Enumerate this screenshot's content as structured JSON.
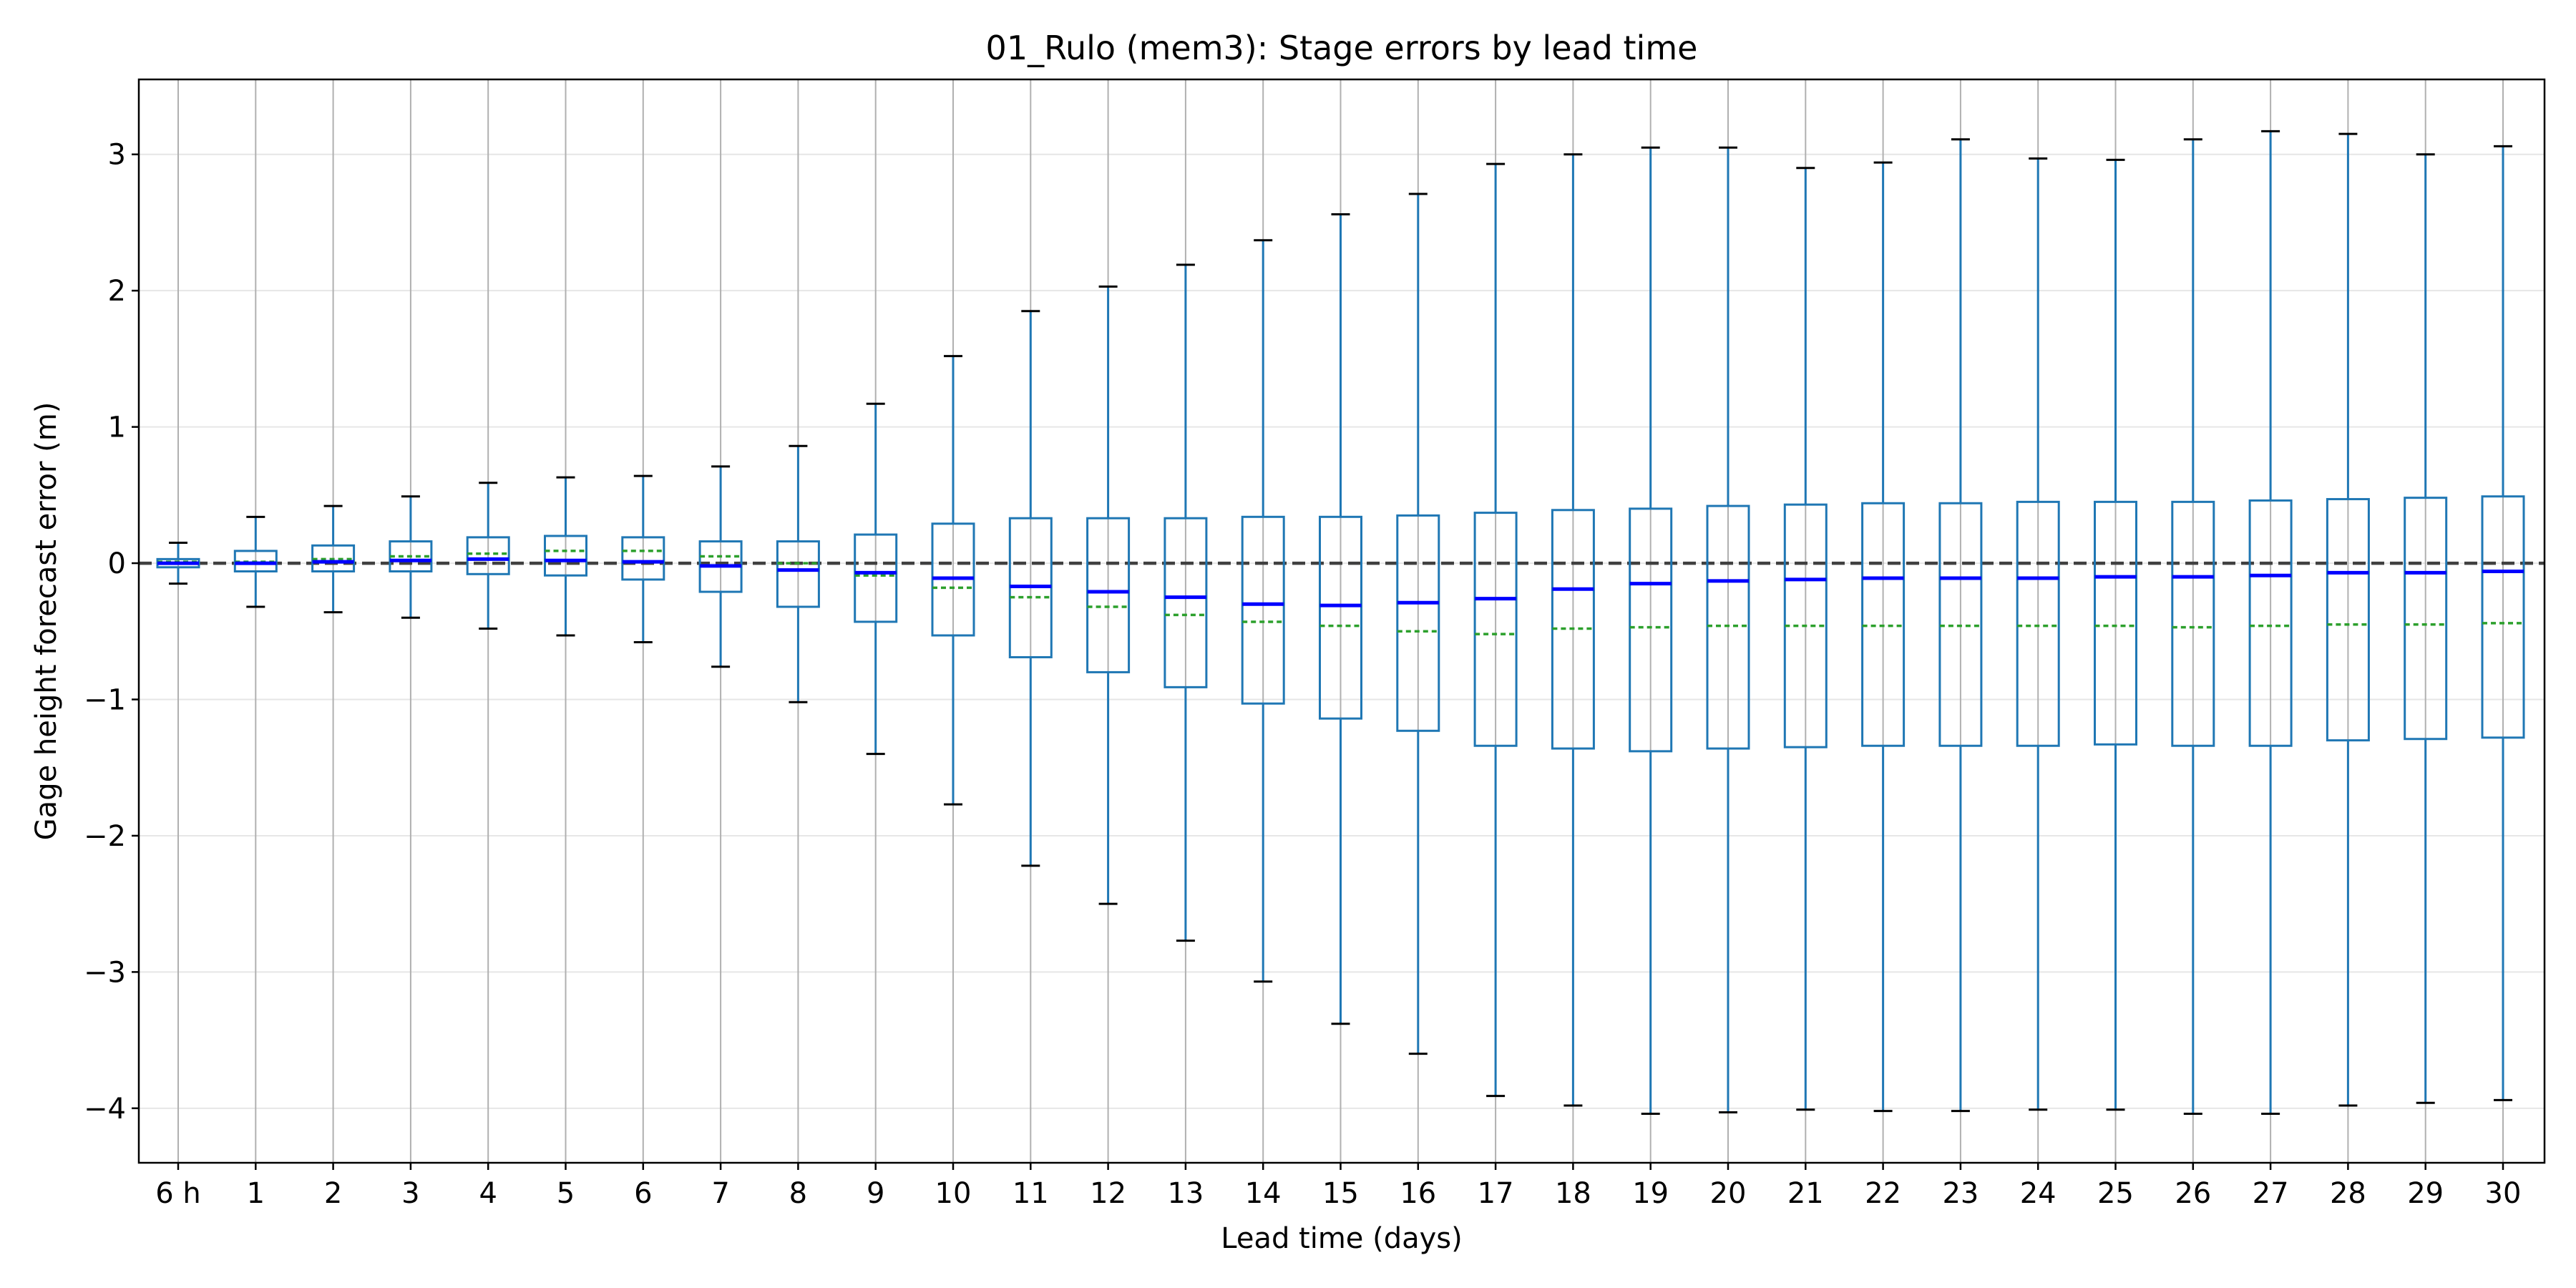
{
  "chart_data": {
    "type": "box",
    "title": "01_Rulo (mem3): Stage errors by lead time",
    "xlabel": "Lead time (days)",
    "ylabel": "Gage height forecast error (m)",
    "ylim": [
      -4.4,
      3.55
    ],
    "yticks": [
      3,
      2,
      1,
      0,
      -1,
      -2,
      -3,
      -4
    ],
    "ytick_labels": [
      "3",
      "2",
      "1",
      "0",
      "−1",
      "−2",
      "−3",
      "−4"
    ],
    "categories": [
      "6 h",
      "1",
      "2",
      "3",
      "4",
      "5",
      "6",
      "7",
      "8",
      "9",
      "10",
      "11",
      "12",
      "13",
      "14",
      "15",
      "16",
      "17",
      "18",
      "19",
      "20",
      "21",
      "22",
      "23",
      "24",
      "25",
      "26",
      "27",
      "28",
      "29",
      "30"
    ],
    "whisker_low": [
      -0.15,
      -0.32,
      -0.36,
      -0.4,
      -0.48,
      -0.53,
      -0.58,
      -0.76,
      -1.02,
      -1.4,
      -1.77,
      -2.22,
      -2.5,
      -2.77,
      -3.07,
      -3.38,
      -3.6,
      -3.91,
      -3.98,
      -4.04,
      -4.03,
      -4.01,
      -4.02,
      -4.02,
      -4.01,
      -4.01,
      -4.04,
      -4.04,
      -3.98,
      -3.96,
      -3.94
    ],
    "q1": [
      -0.03,
      -0.06,
      -0.06,
      -0.06,
      -0.08,
      -0.09,
      -0.12,
      -0.21,
      -0.32,
      -0.43,
      -0.53,
      -0.69,
      -0.8,
      -0.91,
      -1.03,
      -1.14,
      -1.23,
      -1.34,
      -1.36,
      -1.38,
      -1.36,
      -1.35,
      -1.34,
      -1.34,
      -1.34,
      -1.33,
      -1.34,
      -1.34,
      -1.3,
      -1.29,
      -1.28
    ],
    "median": [
      0.0,
      0.0,
      0.01,
      0.02,
      0.03,
      0.02,
      0.01,
      -0.02,
      -0.05,
      -0.07,
      -0.11,
      -0.17,
      -0.21,
      -0.25,
      -0.3,
      -0.31,
      -0.29,
      -0.26,
      -0.19,
      -0.15,
      -0.13,
      -0.12,
      -0.11,
      -0.11,
      -0.11,
      -0.1,
      -0.1,
      -0.09,
      -0.07,
      -0.07,
      -0.06
    ],
    "q3": [
      0.03,
      0.09,
      0.13,
      0.16,
      0.19,
      0.2,
      0.19,
      0.16,
      0.16,
      0.21,
      0.29,
      0.33,
      0.33,
      0.33,
      0.34,
      0.34,
      0.35,
      0.37,
      0.39,
      0.4,
      0.42,
      0.43,
      0.44,
      0.44,
      0.45,
      0.45,
      0.45,
      0.46,
      0.47,
      0.48,
      0.49
    ],
    "whisker_high": [
      0.15,
      0.34,
      0.42,
      0.49,
      0.59,
      0.63,
      0.64,
      0.71,
      0.86,
      1.17,
      1.52,
      1.85,
      2.03,
      2.19,
      2.37,
      2.56,
      2.71,
      2.93,
      3.0,
      3.05,
      3.05,
      2.9,
      2.94,
      3.11,
      2.97,
      2.96,
      3.11,
      3.17,
      3.15,
      3.0,
      3.06
    ],
    "mean": [
      0.01,
      0.01,
      0.03,
      0.05,
      0.07,
      0.09,
      0.09,
      0.05,
      0.0,
      -0.09,
      -0.18,
      -0.25,
      -0.32,
      -0.38,
      -0.43,
      -0.46,
      -0.5,
      -0.52,
      -0.48,
      -0.47,
      -0.46,
      -0.46,
      -0.46,
      -0.46,
      -0.46,
      -0.46,
      -0.47,
      -0.46,
      -0.45,
      -0.45,
      -0.44
    ],
    "reference_line": 0,
    "grid": "x-major and y-major",
    "colors": {
      "box": "#1f77b4",
      "median": "#0000ff",
      "mean": "#2ca02c",
      "caps": "#000000",
      "reference": "#404040",
      "vgrid": "#b0b0b0",
      "hgrid": "#e6e6e6"
    }
  }
}
